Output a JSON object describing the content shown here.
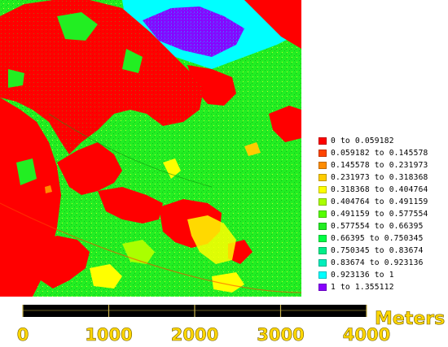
{
  "legend": {
    "items": [
      {
        "label": "0 to 0.059182",
        "color": "#ff0000"
      },
      {
        "label": "0.059182 to 0.145578",
        "color": "#ff4400"
      },
      {
        "label": "0.145578 to 0.231973",
        "color": "#ff8c00"
      },
      {
        "label": "0.231973 to 0.318368",
        "color": "#ffcc00"
      },
      {
        "label": "0.318368 to 0.404764",
        "color": "#ffff00"
      },
      {
        "label": "0.404764 to 0.491159",
        "color": "#aaff00"
      },
      {
        "label": "0.491159 to 0.577554",
        "color": "#55ff00"
      },
      {
        "label": "0.577554 to 0.66395",
        "color": "#22ee22"
      },
      {
        "label": "0.66395 to 0.750345",
        "color": "#00ff44"
      },
      {
        "label": "0.750345 to 0.83674",
        "color": "#00ee88"
      },
      {
        "label": "0.83674 to 0.923136",
        "color": "#00eebb"
      },
      {
        "label": "0.923136 to 1",
        "color": "#00ffff"
      },
      {
        "label": "1 to 1.355112",
        "color": "#8800ff"
      }
    ]
  },
  "scale_bar": {
    "unit_label": "Meters",
    "ticks": [
      "0",
      "1000",
      "2000",
      "3000",
      "4000"
    ],
    "text_color": "#ffd700",
    "bar_color": "#000000"
  },
  "map": {
    "base_color": "#22ee22",
    "dense_color": "#ff0000",
    "water_color": "#00ffff",
    "high_color": "#8800ff"
  }
}
